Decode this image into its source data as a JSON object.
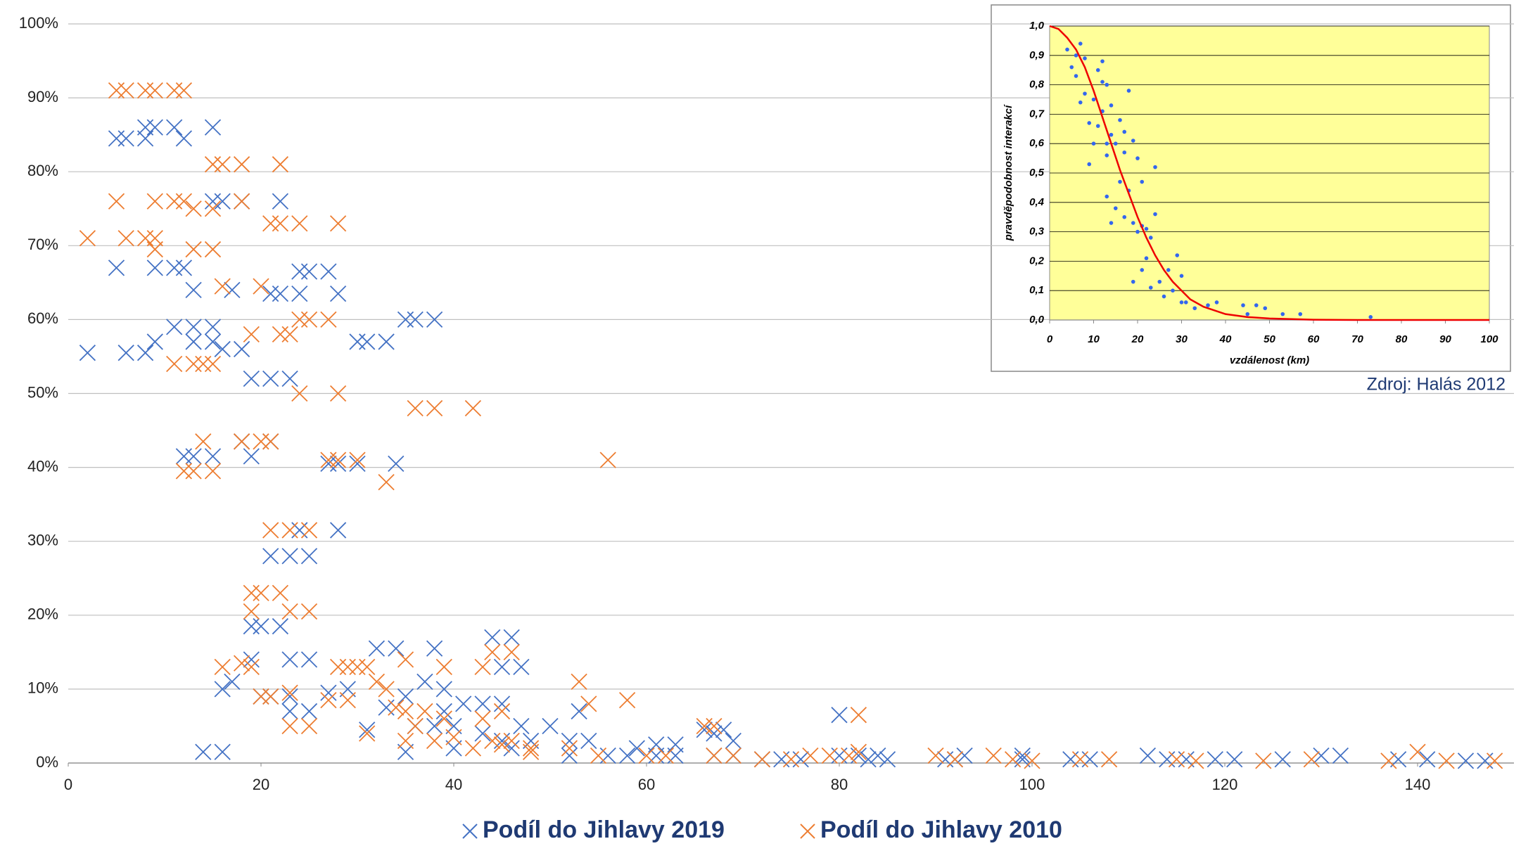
{
  "chart_data": [
    {
      "type": "scatter",
      "xlim": [
        0,
        150
      ],
      "ylim": [
        0,
        100
      ],
      "xticks": [
        0,
        20,
        40,
        60,
        80,
        100,
        120,
        140
      ],
      "yticks": [
        {
          "value": 0,
          "label": "0%"
        },
        {
          "value": 10,
          "label": "10%"
        },
        {
          "value": 20,
          "label": "20%"
        },
        {
          "value": 30,
          "label": "30%"
        },
        {
          "value": 40,
          "label": "40%"
        },
        {
          "value": 50,
          "label": "50%"
        },
        {
          "value": 60,
          "label": "60%"
        },
        {
          "value": 70,
          "label": "70%"
        },
        {
          "value": 80,
          "label": "80%"
        },
        {
          "value": 90,
          "label": "90%"
        },
        {
          "value": 100,
          "label": "100%"
        }
      ],
      "grid": true,
      "legend": "bottom",
      "series": [
        {
          "name": "Podíl do Jihlavy 2019",
          "color": "#4472c4",
          "x": [
            2,
            5,
            5,
            6,
            6,
            8,
            8,
            8,
            9,
            9,
            9,
            11,
            11,
            11,
            12,
            12,
            12,
            13,
            13,
            13,
            13,
            14,
            15,
            15,
            15,
            15,
            15,
            16,
            16,
            16,
            16,
            17,
            17,
            18,
            18,
            18,
            19,
            19,
            19,
            19,
            20,
            20,
            21,
            21,
            21,
            21,
            21,
            22,
            22,
            22,
            23,
            23,
            23,
            23,
            23,
            24,
            24,
            24,
            25,
            25,
            25,
            25,
            27,
            27,
            27,
            28,
            28,
            28,
            29,
            30,
            30,
            31,
            31,
            32,
            33,
            33,
            34,
            34,
            35,
            35,
            35,
            36,
            36,
            37,
            38,
            38,
            38,
            39,
            39,
            40,
            40,
            41,
            43,
            43,
            44,
            45,
            45,
            45,
            46,
            46,
            47,
            47,
            48,
            50,
            52,
            52,
            53,
            54,
            56,
            58,
            59,
            61,
            61,
            63,
            63,
            66,
            67,
            67,
            68,
            69,
            69,
            72,
            74,
            76,
            80,
            80,
            82,
            83,
            84,
            85,
            91,
            92,
            93,
            99,
            99,
            104,
            106,
            112,
            114,
            116,
            119,
            121,
            126,
            130,
            132,
            138,
            141,
            145,
            147
          ],
          "values": [
            55.5,
            84.5,
            67,
            84.5,
            55.5,
            86,
            84.5,
            55.5,
            86,
            67,
            57,
            86,
            67,
            59,
            84.5,
            67,
            41.5,
            64,
            59,
            57,
            41.5,
            1.5,
            86,
            76,
            59,
            57,
            41.5,
            76,
            56,
            10,
            1.5,
            64,
            11,
            76,
            56,
            43.5,
            52,
            41.5,
            18.5,
            14,
            18.5,
            9,
            63.5,
            52,
            43.5,
            28,
            9,
            76,
            63.5,
            18.5,
            52,
            28,
            14,
            9,
            7,
            66.5,
            63.5,
            31.5,
            66.5,
            28,
            14,
            7,
            66.5,
            40.5,
            9.5,
            63.5,
            40.5,
            31.5,
            10,
            40.5,
            57,
            57,
            4.5,
            15.5,
            57,
            7.5,
            15.5,
            40.5,
            60,
            1.5,
            9,
            60,
            5,
            11,
            60,
            15.5,
            5,
            10,
            7,
            2,
            5,
            8,
            8,
            4,
            17,
            13,
            8,
            3,
            17,
            2,
            13,
            5,
            3,
            5,
            1,
            3,
            7,
            3,
            1,
            1,
            2,
            2.5,
            1,
            2.5,
            1,
            4.5,
            4,
            1,
            4.5,
            3,
            1,
            0.5,
            0.5,
            0.5,
            6.5,
            1,
            1,
            0.5,
            1,
            0.5,
            0.5,
            0.5,
            1,
            1,
            0.5,
            0.5,
            0.5,
            1,
            0.5,
            0.5,
            0.5,
            0.5,
            0.5,
            1,
            1,
            0.5,
            0.5,
            0.3,
            0.3
          ]
        },
        {
          "name": "Podíl do Jihlavy 2010",
          "color": "#ed7d31",
          "x": [
            2,
            5,
            5,
            6,
            6,
            8,
            8,
            9,
            9,
            9,
            9,
            11,
            11,
            11,
            12,
            12,
            12,
            13,
            13,
            13,
            13,
            14,
            14,
            15,
            15,
            15,
            15,
            15,
            16,
            16,
            16,
            18,
            18,
            18,
            18,
            19,
            19,
            19,
            19,
            20,
            20,
            20,
            20,
            21,
            21,
            21,
            21,
            22,
            22,
            22,
            22,
            23,
            23,
            23,
            23,
            23,
            24,
            24,
            24,
            25,
            25,
            25,
            25,
            27,
            27,
            27,
            28,
            28,
            28,
            28,
            29,
            29,
            30,
            30,
            31,
            31,
            32,
            33,
            33,
            34,
            35,
            35,
            35,
            36,
            36,
            37,
            38,
            38,
            39,
            39,
            40,
            42,
            42,
            43,
            43,
            44,
            44,
            45,
            45,
            46,
            46,
            48,
            48,
            52,
            53,
            54,
            55,
            56,
            58,
            60,
            62,
            66,
            67,
            67,
            69,
            72,
            75,
            77,
            79,
            81,
            82,
            82,
            90,
            92,
            96,
            98,
            100,
            105,
            108,
            115,
            117,
            124,
            129,
            137,
            140,
            143,
            148
          ],
          "values": [
            71,
            91,
            76,
            91,
            71,
            91,
            71,
            91,
            76,
            71,
            69.5,
            91,
            76,
            54,
            91,
            76,
            39.5,
            75,
            69.5,
            54,
            39.5,
            54,
            43.5,
            81,
            75,
            69.5,
            54,
            39.5,
            81,
            64.5,
            13,
            81,
            76,
            43.5,
            13.5,
            58,
            23,
            20.5,
            13,
            64.5,
            43.5,
            23,
            9,
            73,
            43.5,
            31.5,
            9,
            81,
            73,
            58,
            23,
            58,
            31.5,
            20.5,
            9.5,
            5,
            73,
            60,
            50,
            60,
            31.5,
            20.5,
            5,
            60,
            41,
            8.5,
            73,
            50,
            41,
            13,
            13,
            8.5,
            41,
            13,
            13,
            4,
            11,
            38,
            10,
            7.5,
            14,
            7,
            3,
            48,
            5,
            7,
            48,
            3,
            13,
            6,
            3.5,
            48,
            2,
            13,
            6,
            15,
            3,
            7,
            2.5,
            15,
            3,
            2,
            1.5,
            2,
            11,
            8,
            1,
            41,
            8.5,
            1,
            1,
            5,
            5,
            1,
            1,
            0.5,
            0.5,
            1,
            1,
            1,
            6.5,
            1.5,
            1,
            0.5,
            1,
            0.5,
            0.3,
            0.5,
            0.5,
            0.5,
            0.3,
            0.3,
            0.5,
            0.3,
            1.5,
            0.3,
            0.3
          ]
        }
      ]
    },
    {
      "type": "scatter",
      "xlim": [
        0,
        100
      ],
      "ylim": [
        0,
        1
      ],
      "xlabel": "vzdálenost (km)",
      "ylabel": "pravděpodobnost interakcí",
      "source": "Zdroj: Halás 2012",
      "xticks": [
        0,
        10,
        20,
        30,
        40,
        50,
        60,
        70,
        80,
        90,
        100
      ],
      "yticks": [
        {
          "value": 0,
          "label": "0,0"
        },
        {
          "value": 0.1,
          "label": "0,1"
        },
        {
          "value": 0.2,
          "label": "0,2"
        },
        {
          "value": 0.3,
          "label": "0,3"
        },
        {
          "value": 0.4,
          "label": "0,4"
        },
        {
          "value": 0.5,
          "label": "0,5"
        },
        {
          "value": 0.6,
          "label": "0,6"
        },
        {
          "value": 0.7,
          "label": "0,7"
        },
        {
          "value": 0.8,
          "label": "0,8"
        },
        {
          "value": 0.9,
          "label": "0,9"
        },
        {
          "value": 1,
          "label": "1,0"
        }
      ],
      "grid": true,
      "background": "#ffff99",
      "series": [
        {
          "color": "#3366ee",
          "style": "dots",
          "x": [
            4,
            5,
            6,
            6,
            7,
            7,
            8,
            8,
            9,
            9,
            10,
            10,
            11,
            11,
            12,
            12,
            12,
            13,
            13,
            13,
            13,
            14,
            14,
            14,
            15,
            15,
            16,
            16,
            17,
            17,
            17,
            18,
            18,
            19,
            19,
            19,
            20,
            20,
            21,
            21,
            21,
            22,
            22,
            23,
            23,
            24,
            24,
            25,
            26,
            27,
            28,
            29,
            30,
            30,
            31,
            33,
            36,
            38,
            44,
            45,
            47,
            49,
            53,
            57,
            73
          ],
          "values": [
            0.92,
            0.86,
            0.9,
            0.83,
            0.94,
            0.74,
            0.77,
            0.89,
            0.53,
            0.67,
            0.6,
            0.75,
            0.66,
            0.85,
            0.88,
            0.71,
            0.81,
            0.56,
            0.8,
            0.6,
            0.42,
            0.33,
            0.63,
            0.73,
            0.6,
            0.38,
            0.68,
            0.47,
            0.57,
            0.35,
            0.64,
            0.78,
            0.44,
            0.13,
            0.33,
            0.61,
            0.3,
            0.55,
            0.17,
            0.32,
            0.47,
            0.31,
            0.21,
            0.11,
            0.28,
            0.52,
            0.36,
            0.13,
            0.08,
            0.17,
            0.1,
            0.22,
            0.06,
            0.15,
            0.06,
            0.04,
            0.05,
            0.06,
            0.05,
            0.02,
            0.05,
            0.04,
            0.02,
            0.02,
            0.01
          ]
        },
        {
          "color": "#ee0000",
          "style": "line",
          "x": [
            0,
            2,
            4,
            6,
            8,
            10,
            12,
            14,
            16,
            18,
            20,
            22,
            24,
            26,
            28,
            30,
            32,
            35,
            40,
            45,
            50,
            55,
            60,
            70,
            80,
            90,
            100
          ],
          "values": [
            1,
            0.99,
            0.96,
            0.92,
            0.86,
            0.78,
            0.69,
            0.6,
            0.51,
            0.43,
            0.35,
            0.28,
            0.22,
            0.17,
            0.13,
            0.1,
            0.07,
            0.045,
            0.02,
            0.01,
            0.005,
            0.003,
            0.001,
            0,
            0,
            0,
            0
          ]
        }
      ]
    }
  ]
}
